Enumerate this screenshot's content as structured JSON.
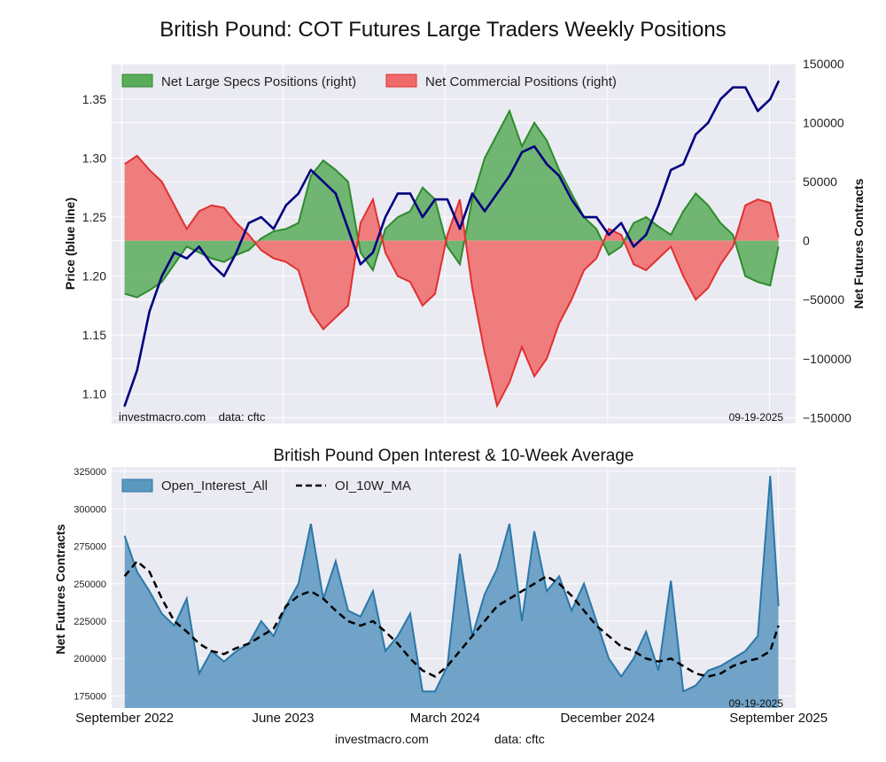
{
  "title": "British Pound: COT Futures Large Traders Weekly Positions",
  "footer": {
    "site": "investmacro.com",
    "source": "data: cftc"
  },
  "colors": {
    "panel_bg": "#eaeaf2",
    "grid": "#ffffff",
    "price_line": "#000080",
    "specs_fill": "#5aab5a",
    "specs_line": "#2e8b2e",
    "comm_fill": "#f06a6a",
    "comm_line": "#e03030",
    "oi_fill": "#5b97bf",
    "oi_line": "#2a78a8",
    "ma_line": "#000000"
  },
  "chart_data": [
    {
      "type": "area",
      "title": "",
      "ylabel": "Price (blue line)",
      "y2label": "Net Futures Contracts",
      "ylim": [
        1.075,
        1.38
      ],
      "y2lim": [
        -155000,
        150000
      ],
      "yticks": [
        1.1,
        1.15,
        1.2,
        1.25,
        1.3,
        1.35
      ],
      "yticklabels": [
        "1.10",
        "1.15",
        "1.20",
        "1.25",
        "1.30",
        "1.35"
      ],
      "y2ticks": [
        -150000,
        -100000,
        -50000,
        0,
        50000,
        100000,
        150000
      ],
      "y2ticklabels": [
        "−150000",
        "−100000",
        "−50000",
        "0",
        "50000",
        "100000",
        "150000"
      ],
      "grid": true,
      "legend": "top-left",
      "watermark": "investmacro.com    data: cftc",
      "date_label": "09-19-2025",
      "x": [
        "2022-09-06",
        "2022-09-27",
        "2022-10-18",
        "2022-11-08",
        "2022-11-29",
        "2022-12-20",
        "2023-01-10",
        "2023-01-31",
        "2023-02-21",
        "2023-03-14",
        "2023-04-04",
        "2023-04-25",
        "2023-05-16",
        "2023-06-06",
        "2023-06-27",
        "2023-07-18",
        "2023-08-08",
        "2023-08-29",
        "2023-09-19",
        "2023-10-10",
        "2023-10-31",
        "2023-11-21",
        "2023-12-12",
        "2024-01-02",
        "2024-01-23",
        "2024-02-13",
        "2024-03-05",
        "2024-03-26",
        "2024-04-16",
        "2024-05-07",
        "2024-05-28",
        "2024-06-18",
        "2024-07-09",
        "2024-07-30",
        "2024-08-20",
        "2024-09-10",
        "2024-10-01",
        "2024-10-22",
        "2024-11-12",
        "2024-12-03",
        "2024-12-24",
        "2025-01-14",
        "2025-02-04",
        "2025-02-25",
        "2025-03-18",
        "2025-04-08",
        "2025-04-29",
        "2025-05-20",
        "2025-06-10",
        "2025-07-01",
        "2025-07-22",
        "2025-08-12",
        "2025-09-02",
        "2025-09-16"
      ],
      "series": [
        {
          "name": "Net Large Specs Positions (right)",
          "axis": "right",
          "style": "area",
          "values": [
            -45000,
            -48000,
            -42000,
            -35000,
            -20000,
            -5000,
            -10000,
            -15000,
            -18000,
            -12000,
            -8000,
            2000,
            8000,
            10000,
            15000,
            55000,
            68000,
            60000,
            50000,
            -10000,
            -25000,
            10000,
            20000,
            25000,
            45000,
            35000,
            -5000,
            -20000,
            35000,
            70000,
            90000,
            110000,
            80000,
            100000,
            85000,
            60000,
            40000,
            20000,
            10000,
            -12000,
            -5000,
            15000,
            20000,
            12000,
            5000,
            25000,
            40000,
            30000,
            15000,
            5000,
            -30000,
            -35000,
            -38000,
            -5000
          ]
        },
        {
          "name": "Net Commercial Positions (right)",
          "axis": "right",
          "style": "area",
          "values": [
            65000,
            72000,
            60000,
            50000,
            30000,
            10000,
            25000,
            30000,
            28000,
            15000,
            5000,
            -8000,
            -15000,
            -18000,
            -25000,
            -60000,
            -75000,
            -65000,
            -55000,
            15000,
            35000,
            -10000,
            -30000,
            -35000,
            -55000,
            -45000,
            5000,
            35000,
            -40000,
            -95000,
            -140000,
            -120000,
            -90000,
            -115000,
            -100000,
            -70000,
            -50000,
            -25000,
            -15000,
            10000,
            5000,
            -20000,
            -25000,
            -15000,
            -5000,
            -30000,
            -50000,
            -40000,
            -20000,
            -5000,
            30000,
            35000,
            32000,
            3000
          ]
        },
        {
          "name": "Price",
          "axis": "left",
          "style": "line",
          "values": [
            1.09,
            1.12,
            1.17,
            1.2,
            1.22,
            1.215,
            1.225,
            1.21,
            1.2,
            1.22,
            1.245,
            1.25,
            1.24,
            1.26,
            1.27,
            1.29,
            1.28,
            1.27,
            1.24,
            1.21,
            1.22,
            1.25,
            1.27,
            1.27,
            1.25,
            1.265,
            1.265,
            1.24,
            1.27,
            1.255,
            1.27,
            1.285,
            1.305,
            1.31,
            1.295,
            1.285,
            1.265,
            1.25,
            1.25,
            1.235,
            1.245,
            1.225,
            1.235,
            1.26,
            1.29,
            1.295,
            1.32,
            1.33,
            1.35,
            1.36,
            1.36,
            1.34,
            1.35,
            1.365
          ]
        }
      ]
    },
    {
      "type": "area",
      "title": "British Pound Open Interest & 10-Week Average",
      "ylabel": "Net Futures Contracts",
      "xlabel": "",
      "ylim": [
        167000,
        328000
      ],
      "yticks": [
        175000,
        200000,
        225000,
        250000,
        275000,
        300000,
        325000
      ],
      "yticklabels": [
        "175000",
        "200000",
        "225000",
        "250000",
        "275000",
        "300000",
        "325000"
      ],
      "xticklabels": [
        "September 2022",
        "June 2023",
        "March 2024",
        "December 2024",
        "September 2025"
      ],
      "xtickdates": [
        "2022-09-06",
        "2023-06-01",
        "2024-03-01",
        "2024-12-01",
        "2025-09-16"
      ],
      "grid": true,
      "legend": "top-left",
      "date_label": "09-19-2025",
      "x": [
        "2022-09-06",
        "2022-09-27",
        "2022-10-18",
        "2022-11-08",
        "2022-11-29",
        "2022-12-20",
        "2023-01-10",
        "2023-01-31",
        "2023-02-21",
        "2023-03-14",
        "2023-04-04",
        "2023-04-25",
        "2023-05-16",
        "2023-06-06",
        "2023-06-27",
        "2023-07-18",
        "2023-08-08",
        "2023-08-29",
        "2023-09-19",
        "2023-10-10",
        "2023-10-31",
        "2023-11-21",
        "2023-12-12",
        "2024-01-02",
        "2024-01-23",
        "2024-02-13",
        "2024-03-05",
        "2024-03-26",
        "2024-04-16",
        "2024-05-07",
        "2024-05-28",
        "2024-06-18",
        "2024-07-09",
        "2024-07-30",
        "2024-08-20",
        "2024-09-10",
        "2024-10-01",
        "2024-10-22",
        "2024-11-12",
        "2024-12-03",
        "2024-12-24",
        "2025-01-14",
        "2025-02-04",
        "2025-02-25",
        "2025-03-18",
        "2025-04-08",
        "2025-04-29",
        "2025-05-20",
        "2025-06-10",
        "2025-07-01",
        "2025-07-22",
        "2025-08-12",
        "2025-09-02",
        "2025-09-16"
      ],
      "series": [
        {
          "name": "Open_Interest_All",
          "style": "area",
          "values": [
            282000,
            258000,
            245000,
            230000,
            222000,
            240000,
            190000,
            205000,
            198000,
            205000,
            210000,
            225000,
            215000,
            235000,
            250000,
            290000,
            240000,
            265000,
            232000,
            228000,
            245000,
            205000,
            215000,
            230000,
            178000,
            178000,
            195000,
            270000,
            215000,
            243000,
            260000,
            290000,
            225000,
            285000,
            245000,
            255000,
            232000,
            250000,
            225000,
            200000,
            188000,
            200000,
            218000,
            192000,
            252000,
            178000,
            182000,
            192000,
            195000,
            200000,
            205000,
            215000,
            322000,
            235000
          ]
        },
        {
          "name": "OI_10W_MA",
          "style": "dashed-line",
          "values": [
            255000,
            265000,
            258000,
            240000,
            225000,
            218000,
            210000,
            205000,
            203000,
            207000,
            210000,
            215000,
            220000,
            235000,
            242000,
            245000,
            240000,
            232000,
            225000,
            222000,
            225000,
            218000,
            210000,
            200000,
            192000,
            188000,
            195000,
            205000,
            215000,
            225000,
            235000,
            240000,
            245000,
            250000,
            255000,
            250000,
            242000,
            232000,
            222000,
            215000,
            208000,
            205000,
            200000,
            198000,
            200000,
            195000,
            190000,
            188000,
            190000,
            195000,
            198000,
            200000,
            205000,
            222000
          ]
        }
      ]
    }
  ]
}
